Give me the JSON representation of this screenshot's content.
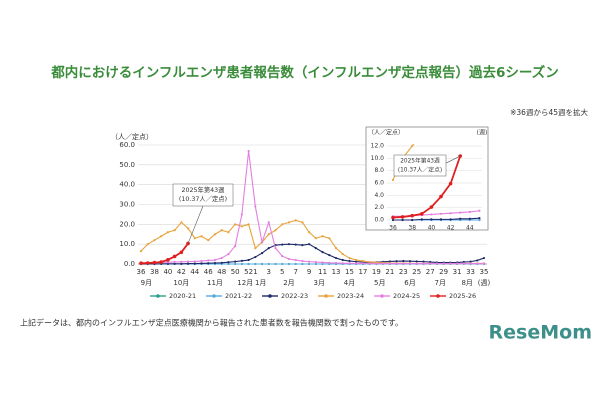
{
  "chart_data": {
    "type": "line",
    "title": "都内におけるインフルエンザ患者報告数（インフルエンザ定点報告）過去6シーズン",
    "note": "※36週から45週を拡大",
    "y_label": "（人／定点）",
    "x_unit": "(週)",
    "categories": [
      "36",
      null,
      "38",
      null,
      "40",
      null,
      "42",
      null,
      "44",
      null,
      "46",
      null,
      "48",
      null,
      "50",
      null,
      "52",
      "1",
      null,
      "3",
      null,
      "5",
      null,
      "7",
      null,
      "9",
      null,
      "11",
      null,
      "13",
      null,
      "15",
      null,
      "17",
      null,
      "19",
      null,
      "21",
      null,
      "23",
      null,
      "25",
      null,
      "27",
      null,
      "29",
      null,
      "31",
      null,
      "33",
      null,
      "35"
    ],
    "months": [
      "9月",
      "10月",
      "11月",
      "12月",
      "1月",
      "2月",
      "3月",
      "4月",
      "5月",
      "6月",
      "7月",
      "8月"
    ],
    "ylim": [
      0,
      60
    ],
    "yticks": [
      {
        "value": 0,
        "label": "0.0"
      },
      {
        "value": 10,
        "label": "10.0"
      },
      {
        "value": 20,
        "label": "20.0"
      },
      {
        "value": 30,
        "label": "30.0"
      },
      {
        "value": 40,
        "label": "40.0"
      },
      {
        "value": 50,
        "label": "50.0"
      },
      {
        "value": 60,
        "label": "60.0"
      }
    ],
    "grid": true,
    "series": [
      {
        "name": "2020-21",
        "color": "#2e9e8a",
        "values": [
          0,
          0,
          0,
          0,
          0,
          0,
          0,
          0,
          0,
          0,
          0,
          0,
          0,
          0,
          0,
          0,
          0,
          0,
          0,
          0,
          0,
          0,
          0,
          0,
          0,
          0,
          0,
          0,
          0,
          0,
          0,
          0,
          0,
          0,
          0,
          0,
          0,
          0,
          0,
          0,
          0,
          0,
          0,
          0,
          0,
          0,
          0,
          0,
          0,
          0,
          0,
          0
        ]
      },
      {
        "name": "2021-22",
        "color": "#5aa9dc",
        "values": [
          0,
          0,
          0,
          0,
          0,
          0,
          0,
          0,
          0,
          0,
          0,
          0,
          0,
          0,
          0,
          0,
          0,
          0,
          0,
          0,
          0,
          0,
          0,
          0,
          0,
          0,
          0,
          0,
          0,
          0,
          0,
          0,
          0,
          0,
          0,
          0,
          0,
          0,
          0,
          0,
          0,
          0,
          0,
          0,
          0,
          0,
          0,
          0,
          0,
          0,
          0,
          0
        ]
      },
      {
        "name": "2022-23",
        "color": "#1f2a6b",
        "values": [
          0,
          0,
          0,
          0.1,
          0.1,
          0.1,
          0.1,
          0.2,
          0.2,
          0.3,
          0.4,
          0.5,
          0.6,
          0.9,
          1.2,
          1.6,
          2,
          3.5,
          5.5,
          8,
          9.5,
          9.8,
          10,
          9.8,
          9.5,
          10,
          8,
          6,
          4.5,
          3,
          2,
          1.5,
          1.2,
          1,
          0.8,
          0.9,
          1.1,
          1.3,
          1.4,
          1.5,
          1.4,
          1.3,
          1.2,
          1,
          0.8,
          0.7,
          0.7,
          0.8,
          1,
          1.2,
          1.8,
          3
        ]
      },
      {
        "name": "2023-24",
        "color": "#e8a33c",
        "values": [
          6.5,
          10,
          12,
          14,
          16,
          17,
          21,
          18,
          13,
          14,
          12,
          15,
          17,
          16,
          20,
          19,
          20,
          8,
          11,
          15,
          17,
          20,
          21,
          22,
          21,
          16,
          13,
          14,
          13,
          8,
          5,
          3,
          2,
          1.5,
          1,
          0.8,
          0.6,
          0.5,
          0.4,
          0.4,
          0.3,
          0.3,
          0.3,
          0.2,
          0.2,
          0.2,
          0.2,
          0.2,
          0.2,
          0.3,
          0.3,
          0.3
        ]
      },
      {
        "name": "2024-25",
        "color": "#e37fe0",
        "values": [
          0.6,
          0.6,
          0.7,
          0.8,
          0.9,
          1,
          1.1,
          1.2,
          1.3,
          1.5,
          1.8,
          2,
          3,
          5,
          9,
          25,
          57,
          29,
          11,
          21,
          8,
          4,
          2.5,
          2,
          1.5,
          1.2,
          1,
          0.8,
          0.6,
          0.5,
          0.4,
          0.3,
          0.3,
          0.3,
          0.2,
          0.2,
          0.2,
          0.2,
          0.2,
          0.2,
          0.2,
          0.2,
          0.2,
          0.2,
          0.2,
          0.2,
          0.2,
          0.2,
          0.2,
          0.2,
          0.2,
          0.2
        ]
      },
      {
        "name": "2025-26",
        "color": "#e02020",
        "values": [
          0.4,
          0.5,
          0.7,
          1,
          2.1,
          3.8,
          5.9,
          10.37,
          null,
          null,
          null,
          null,
          null,
          null,
          null,
          null,
          null,
          null,
          null,
          null,
          null,
          null,
          null,
          null,
          null,
          null,
          null,
          null,
          null,
          null,
          null,
          null,
          null,
          null,
          null,
          null,
          null,
          null,
          null,
          null,
          null,
          null,
          null,
          null,
          null,
          null,
          null,
          null,
          null,
          null,
          null,
          null
        ]
      }
    ],
    "annotation": [
      "2025年第43週",
      "(10.37人／定点)"
    ],
    "inset": {
      "ylim": [
        0,
        12
      ],
      "yticks": [
        {
          "value": 0,
          "label": "0.0"
        },
        {
          "value": 2,
          "label": "2.0"
        },
        {
          "value": 4,
          "label": "4.0"
        },
        {
          "value": 6,
          "label": "6.0"
        },
        {
          "value": 8,
          "label": "8.0"
        },
        {
          "value": 10,
          "label": "10.0"
        },
        {
          "value": 12,
          "label": "12.0"
        }
      ]
    },
    "footnote": "上記データは、都内のインフルエンザ定点医療機関から報告された患者数を報告機関数で割ったものです。",
    "logo": "ReseMom"
  }
}
